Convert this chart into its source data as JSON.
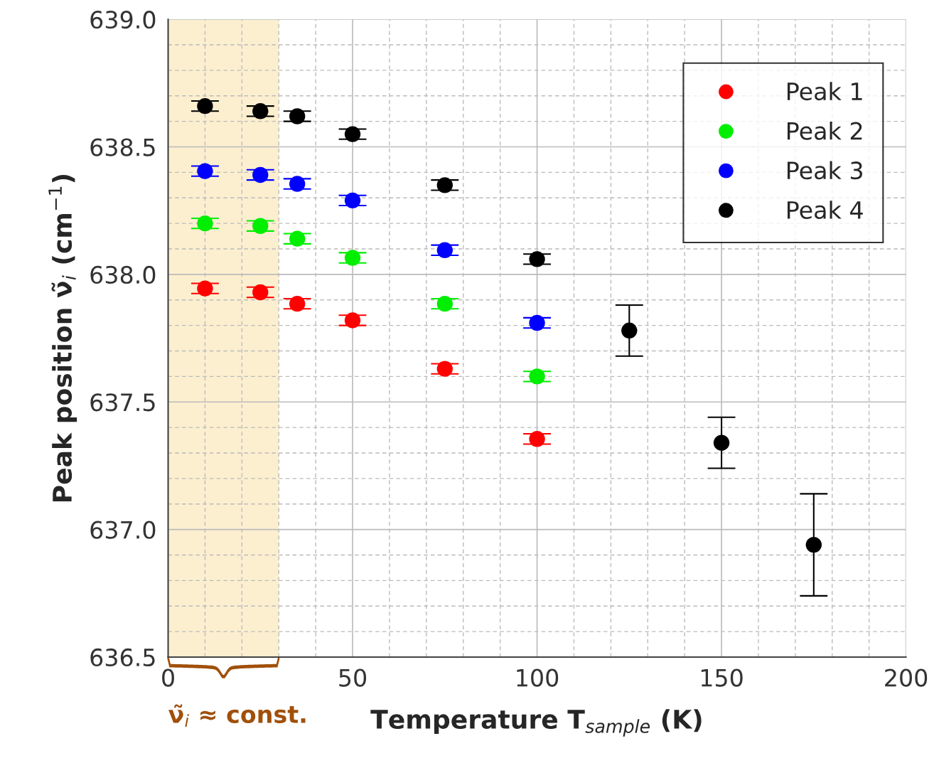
{
  "chart_data": {
    "type": "scatter",
    "xlabel": "Temperature T$_{sample}$ (K)",
    "ylabel": "Peak position ν̃$_{i}$ (cm$^{−1}$)",
    "xlim": [
      0,
      200
    ],
    "ylim": [
      636.5,
      639.0
    ],
    "xticks": [
      0,
      50,
      100,
      150,
      200
    ],
    "yticks": [
      {
        "value": 636.5,
        "label": "636.5"
      },
      {
        "value": 637.0,
        "label": "637.0"
      },
      {
        "value": 637.5,
        "label": "637.5"
      },
      {
        "value": 638.0,
        "label": "638.0"
      },
      {
        "value": 638.5,
        "label": "638.5"
      },
      {
        "value": 639.0,
        "label": "639.0"
      }
    ],
    "grid": true,
    "legend": "top right",
    "marker": "circle",
    "bands": [
      {
        "axis": "x",
        "from": 0,
        "to": 30,
        "label": "ν̃$_{i}$ ≈ const.",
        "color": "#fcefcf"
      }
    ],
    "series": [
      {
        "name": "Peak 1",
        "color": "#ff0000",
        "x": [
          10,
          25,
          35,
          50,
          75,
          100
        ],
        "values": [
          637.945,
          637.93,
          637.885,
          637.82,
          637.63,
          637.355
        ],
        "errors": [
          0.02,
          0.02,
          0.02,
          0.02,
          0.02,
          0.02
        ]
      },
      {
        "name": "Peak 2",
        "color": "#00ee00",
        "x": [
          10,
          25,
          35,
          50,
          75,
          100
        ],
        "values": [
          638.2,
          638.19,
          638.14,
          638.065,
          637.885,
          637.6
        ],
        "errors": [
          0.02,
          0.02,
          0.02,
          0.02,
          0.02,
          0.02
        ]
      },
      {
        "name": "Peak 3",
        "color": "#0000ff",
        "x": [
          10,
          25,
          35,
          50,
          75,
          100
        ],
        "values": [
          638.405,
          638.39,
          638.355,
          638.29,
          638.095,
          637.81
        ],
        "errors": [
          0.02,
          0.02,
          0.02,
          0.02,
          0.02,
          0.02
        ]
      },
      {
        "name": "Peak 4",
        "color": "#000000",
        "x": [
          10,
          25,
          35,
          50,
          75,
          100,
          125,
          150,
          175
        ],
        "values": [
          638.66,
          638.64,
          638.62,
          638.55,
          638.35,
          638.06,
          637.78,
          637.34,
          636.94
        ],
        "errors": [
          0.02,
          0.02,
          0.02,
          0.02,
          0.02,
          0.02,
          0.1,
          0.1,
          0.2
        ]
      }
    ]
  }
}
